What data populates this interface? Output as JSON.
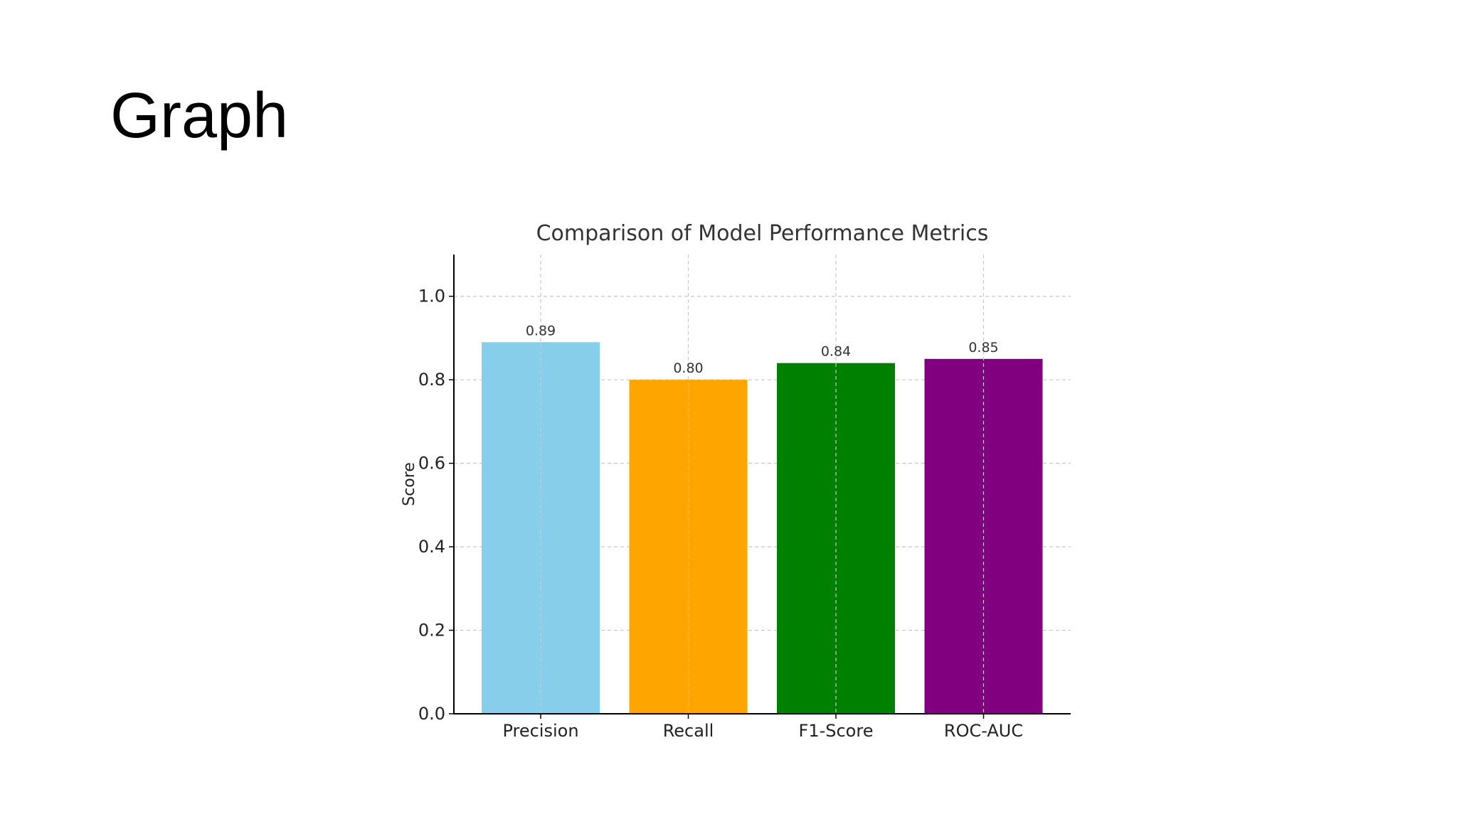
{
  "slide": {
    "title": "Graph"
  },
  "chart_data": {
    "type": "bar",
    "title": "Comparison of Model Performance Metrics",
    "xlabel": "",
    "ylabel": "Score",
    "categories": [
      "Precision",
      "Recall",
      "F1-Score",
      "ROC-AUC"
    ],
    "values": [
      0.89,
      0.8,
      0.84,
      0.85
    ],
    "data_labels": [
      "0.89",
      "0.80",
      "0.84",
      "0.85"
    ],
    "colors": [
      "#87CEEB",
      "#FFA500",
      "#008000",
      "#800080"
    ],
    "ylim": [
      0,
      1.1
    ],
    "yticks": [
      0.0,
      0.2,
      0.4,
      0.6,
      0.8,
      1.0
    ],
    "ytick_labels": [
      "0.0",
      "0.2",
      "0.4",
      "0.6",
      "0.8",
      "1.0"
    ],
    "grid": true,
    "grid_style": "dashed",
    "legend": "none"
  }
}
